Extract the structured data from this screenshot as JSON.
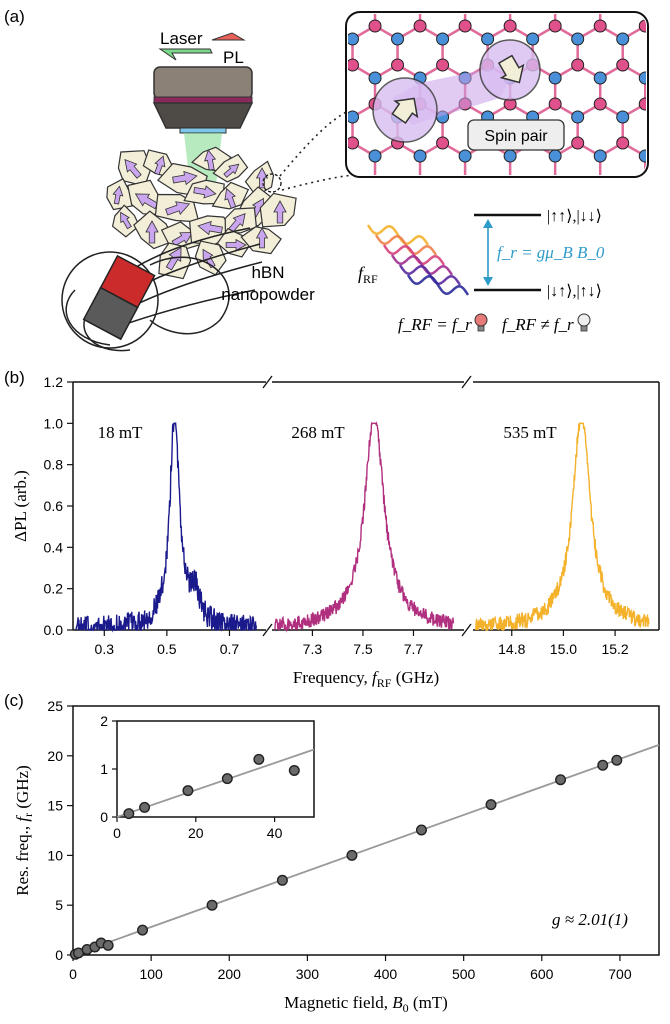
{
  "panels": {
    "a": "(a)",
    "b": "(b)",
    "c": "(c)"
  },
  "schematic": {
    "laser_label": "Laser",
    "pl_label": "PL",
    "material_label_line1": "hBN",
    "material_label_line2": "nanopowder",
    "spin_pair_label": "Spin pair",
    "frf_label": "f_RF",
    "resonance_eq": "f_r = gμ_B B_0",
    "upper_states": "|↑↑⟩,|↓↓⟩",
    "lower_states": "|↓↑⟩,|↑↓⟩",
    "cond_on": "f_RF = f_r",
    "cond_off": "f_RF ≠ f_r",
    "colors": {
      "laser": "#7bd88a",
      "pl": "#e8605a",
      "boron": "#4a90d9",
      "nitrogen": "#e0508a",
      "bond": "#e06a9a",
      "spin": "#c9a0e8",
      "eq": "#2e9bc9",
      "grain": "#f3eed8",
      "arrow": "#c9a6ee"
    }
  },
  "chart_data": [
    {
      "type": "line",
      "panel": "b",
      "ylabel": "ΔPL (arb.)",
      "xlabel": "Frequency, f_RF (GHz)",
      "ylim": [
        0,
        1.2
      ],
      "yticks": [
        "0.0",
        "0.2",
        "0.4",
        "0.6",
        "0.8",
        "1.0",
        "1.2"
      ],
      "axis_break": true,
      "series": [
        {
          "name": "18 mT",
          "color": "#1a1a8c",
          "xlim": [
            0.2,
            0.82
          ],
          "xticks": [
            "0.3",
            "0.5",
            "0.7"
          ],
          "center": 0.525,
          "width": 0.018,
          "noise": 0.06,
          "sidebump": [
            0.59,
            0.14
          ]
        },
        {
          "name": "268 mT",
          "color": "#b0307f",
          "xlim": [
            7.14,
            7.9
          ],
          "xticks": [
            "7.3",
            "7.5",
            "7.7"
          ],
          "center": 7.545,
          "width": 0.045,
          "noise": 0.035,
          "sidebump": null
        },
        {
          "name": "535 mT",
          "color": "#f4b12a",
          "xlim": [
            14.65,
            15.37
          ],
          "xticks": [
            "14.8",
            "15.0",
            "15.2"
          ],
          "center": 15.07,
          "width": 0.04,
          "noise": 0.04,
          "sidebump": null
        }
      ]
    },
    {
      "type": "scatter",
      "panel": "c",
      "xlabel": "Magnetic field, B_0 (mT)",
      "ylabel": "Res. freq., f_r (GHz)",
      "xlim": [
        0,
        750
      ],
      "ylim": [
        0,
        25
      ],
      "xticks": [
        "0",
        "100",
        "200",
        "300",
        "400",
        "500",
        "600",
        "700"
      ],
      "yticks": [
        "0",
        "5",
        "10",
        "15",
        "20",
        "25"
      ],
      "annotation": "g ≈ 2.01(1)",
      "fit": {
        "slope": 0.02813,
        "intercept": 0
      },
      "x": [
        3,
        7,
        18,
        28,
        36,
        45,
        89,
        178,
        268,
        357,
        446,
        535,
        624,
        678,
        696
      ],
      "y": [
        0.07,
        0.2,
        0.55,
        0.8,
        1.2,
        0.97,
        2.5,
        5.0,
        7.5,
        10.0,
        12.55,
        15.1,
        17.6,
        19.05,
        19.55
      ],
      "inset": {
        "xlim": [
          0,
          50
        ],
        "ylim": [
          0,
          2
        ],
        "xticks": [
          "0",
          "20",
          "40"
        ],
        "yticks": [
          "0",
          "1",
          "2"
        ],
        "x": [
          3,
          7,
          18,
          28,
          36,
          45
        ],
        "y": [
          0.07,
          0.2,
          0.55,
          0.8,
          1.2,
          0.97
        ]
      }
    }
  ]
}
